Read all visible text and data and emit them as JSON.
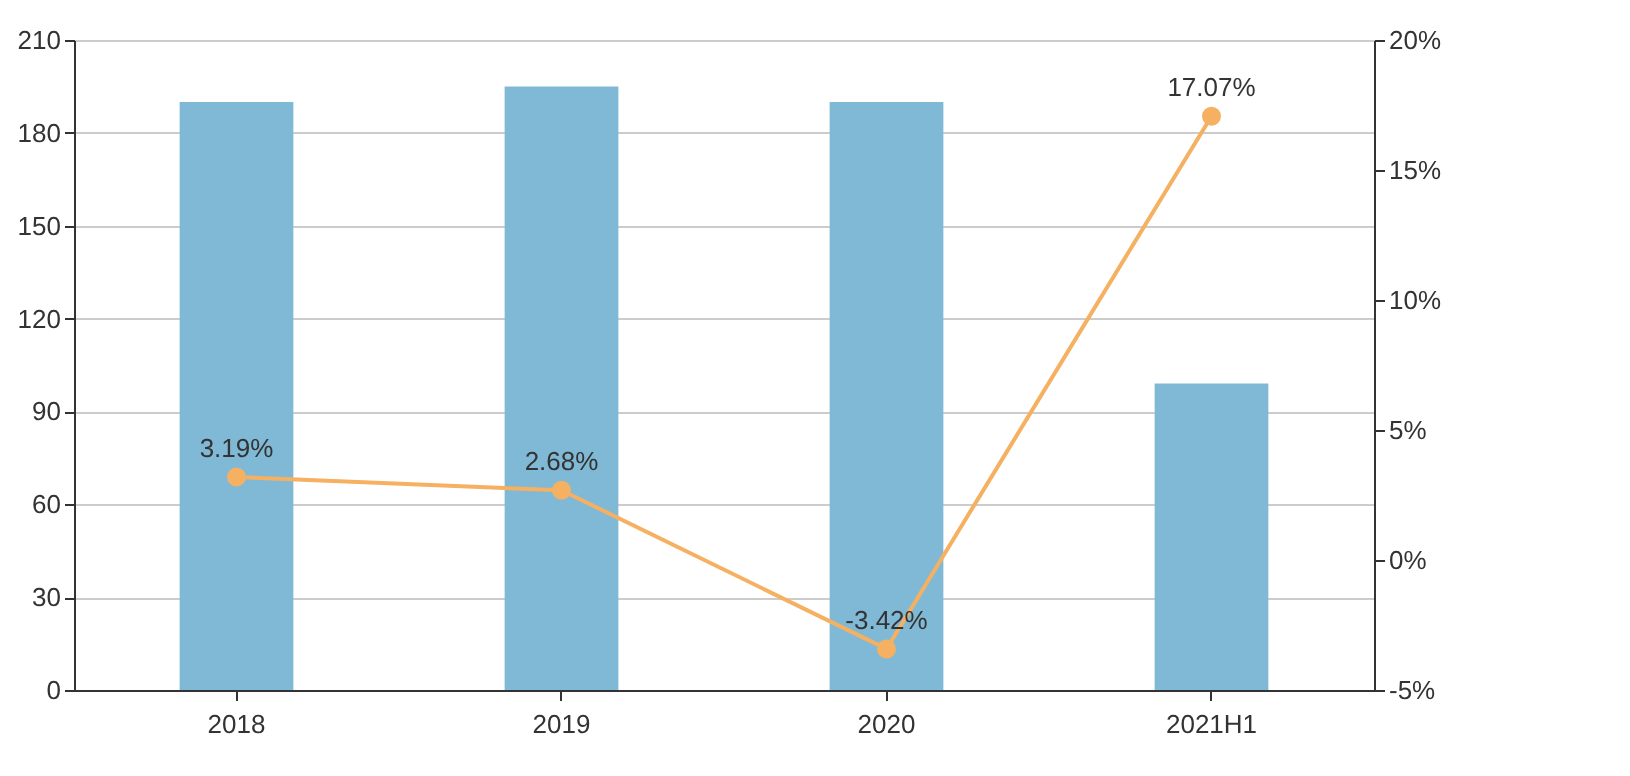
{
  "chart_data": {
    "type": "bar",
    "categories": [
      "2018",
      "2019",
      "2020",
      "2021H1"
    ],
    "series": [
      {
        "color": "#7fb9d6",
        "values": [
          190,
          195,
          190,
          99
        ]
      },
      {
        "type": "line",
        "axis": "y2",
        "color": "#f5b062",
        "values": [
          3.19,
          2.68,
          -3.42,
          17.07
        ],
        "value_labels": [
          "3.19%",
          "2.68%",
          "-3.42%",
          "17.07%"
        ]
      }
    ],
    "ylim": [
      0,
      210
    ],
    "yticks": [
      0,
      30,
      60,
      90,
      120,
      150,
      180,
      210
    ],
    "y2lim": [
      -5,
      20
    ],
    "y2ticks": [
      {
        "value": -5,
        "label": "-5%"
      },
      {
        "value": 0,
        "label": "0%"
      },
      {
        "value": 5,
        "label": "5%"
      },
      {
        "value": 10,
        "label": "10%"
      },
      {
        "value": 15,
        "label": "15%"
      },
      {
        "value": 20,
        "label": "20%"
      }
    ],
    "grid": "y",
    "marker": "circle",
    "line_style": "solid"
  }
}
